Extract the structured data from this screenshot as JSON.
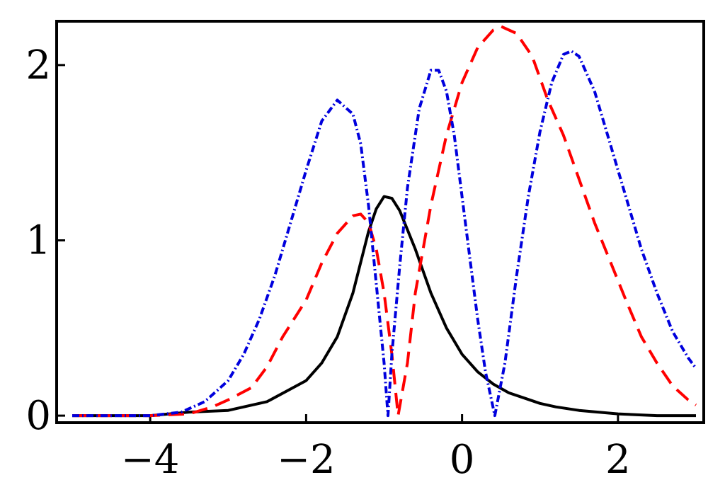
{
  "chart_data": {
    "type": "line",
    "title": "",
    "xlabel": "",
    "ylabel": "",
    "xlim": [
      -5.2,
      3.1
    ],
    "ylim": [
      -0.04,
      2.25
    ],
    "x_ticks": [
      -4,
      -2,
      0,
      2
    ],
    "y_ticks": [
      0,
      1,
      2
    ],
    "x_tick_labels": [
      "−4",
      "−2",
      "0",
      "2"
    ],
    "y_tick_labels": [
      "0",
      "1",
      "2"
    ],
    "grid": false,
    "legend": "none",
    "series": [
      {
        "style": "solid",
        "color": "#000000",
        "points": [
          [
            -5.0,
            0.0
          ],
          [
            -4.0,
            0.0
          ],
          [
            -3.5,
            0.02
          ],
          [
            -3.0,
            0.03
          ],
          [
            -2.5,
            0.08
          ],
          [
            -2.0,
            0.2
          ],
          [
            -1.8,
            0.3
          ],
          [
            -1.6,
            0.45
          ],
          [
            -1.4,
            0.7
          ],
          [
            -1.2,
            1.05
          ],
          [
            -1.1,
            1.18
          ],
          [
            -1.0,
            1.25
          ],
          [
            -0.9,
            1.24
          ],
          [
            -0.8,
            1.17
          ],
          [
            -0.6,
            0.95
          ],
          [
            -0.4,
            0.7
          ],
          [
            -0.2,
            0.5
          ],
          [
            0.0,
            0.35
          ],
          [
            0.2,
            0.25
          ],
          [
            0.4,
            0.18
          ],
          [
            0.6,
            0.13
          ],
          [
            0.8,
            0.1
          ],
          [
            1.0,
            0.07
          ],
          [
            1.2,
            0.05
          ],
          [
            1.5,
            0.03
          ],
          [
            2.0,
            0.01
          ],
          [
            2.5,
            0.0
          ],
          [
            3.0,
            0.0
          ]
        ]
      },
      {
        "style": "dashed",
        "color": "#ff0000",
        "points": [
          [
            -5.0,
            0.0
          ],
          [
            -4.0,
            0.0
          ],
          [
            -3.5,
            0.01
          ],
          [
            -3.2,
            0.05
          ],
          [
            -3.0,
            0.09
          ],
          [
            -2.7,
            0.16
          ],
          [
            -2.5,
            0.28
          ],
          [
            -2.3,
            0.45
          ],
          [
            -2.0,
            0.66
          ],
          [
            -1.8,
            0.87
          ],
          [
            -1.6,
            1.04
          ],
          [
            -1.4,
            1.14
          ],
          [
            -1.3,
            1.15
          ],
          [
            -1.2,
            1.1
          ],
          [
            -1.1,
            0.95
          ],
          [
            -1.0,
            0.7
          ],
          [
            -0.9,
            0.35
          ],
          [
            -0.82,
            0.0
          ],
          [
            -0.7,
            0.3
          ],
          [
            -0.6,
            0.7
          ],
          [
            -0.4,
            1.2
          ],
          [
            -0.2,
            1.6
          ],
          [
            0.0,
            1.9
          ],
          [
            0.2,
            2.1
          ],
          [
            0.4,
            2.2
          ],
          [
            0.5,
            2.22
          ],
          [
            0.7,
            2.18
          ],
          [
            0.9,
            2.05
          ],
          [
            1.1,
            1.8
          ],
          [
            1.3,
            1.6
          ],
          [
            1.5,
            1.35
          ],
          [
            1.7,
            1.1
          ],
          [
            1.9,
            0.88
          ],
          [
            2.1,
            0.66
          ],
          [
            2.3,
            0.45
          ],
          [
            2.5,
            0.3
          ],
          [
            2.7,
            0.17
          ],
          [
            2.9,
            0.09
          ],
          [
            3.0,
            0.06
          ]
        ]
      },
      {
        "style": "dash-dot",
        "color": "#0000dd",
        "points": [
          [
            -5.0,
            0.0
          ],
          [
            -4.0,
            0.0
          ],
          [
            -3.6,
            0.02
          ],
          [
            -3.3,
            0.08
          ],
          [
            -3.0,
            0.2
          ],
          [
            -2.8,
            0.35
          ],
          [
            -2.6,
            0.55
          ],
          [
            -2.4,
            0.8
          ],
          [
            -2.2,
            1.1
          ],
          [
            -2.0,
            1.4
          ],
          [
            -1.8,
            1.68
          ],
          [
            -1.6,
            1.8
          ],
          [
            -1.4,
            1.72
          ],
          [
            -1.3,
            1.55
          ],
          [
            -1.2,
            1.2
          ],
          [
            -1.1,
            0.75
          ],
          [
            -1.0,
            0.3
          ],
          [
            -0.95,
            0.0
          ],
          [
            -0.9,
            0.35
          ],
          [
            -0.8,
            0.85
          ],
          [
            -0.7,
            1.3
          ],
          [
            -0.55,
            1.75
          ],
          [
            -0.4,
            1.97
          ],
          [
            -0.3,
            1.97
          ],
          [
            -0.2,
            1.85
          ],
          [
            -0.1,
            1.6
          ],
          [
            0.0,
            1.25
          ],
          [
            0.1,
            0.9
          ],
          [
            0.2,
            0.55
          ],
          [
            0.3,
            0.25
          ],
          [
            0.42,
            0.0
          ],
          [
            0.55,
            0.3
          ],
          [
            0.7,
            0.8
          ],
          [
            0.85,
            1.25
          ],
          [
            1.0,
            1.62
          ],
          [
            1.15,
            1.9
          ],
          [
            1.3,
            2.06
          ],
          [
            1.4,
            2.08
          ],
          [
            1.5,
            2.05
          ],
          [
            1.7,
            1.85
          ],
          [
            1.9,
            1.55
          ],
          [
            2.1,
            1.25
          ],
          [
            2.3,
            0.95
          ],
          [
            2.5,
            0.7
          ],
          [
            2.7,
            0.48
          ],
          [
            2.9,
            0.33
          ],
          [
            3.0,
            0.27
          ]
        ]
      }
    ]
  }
}
